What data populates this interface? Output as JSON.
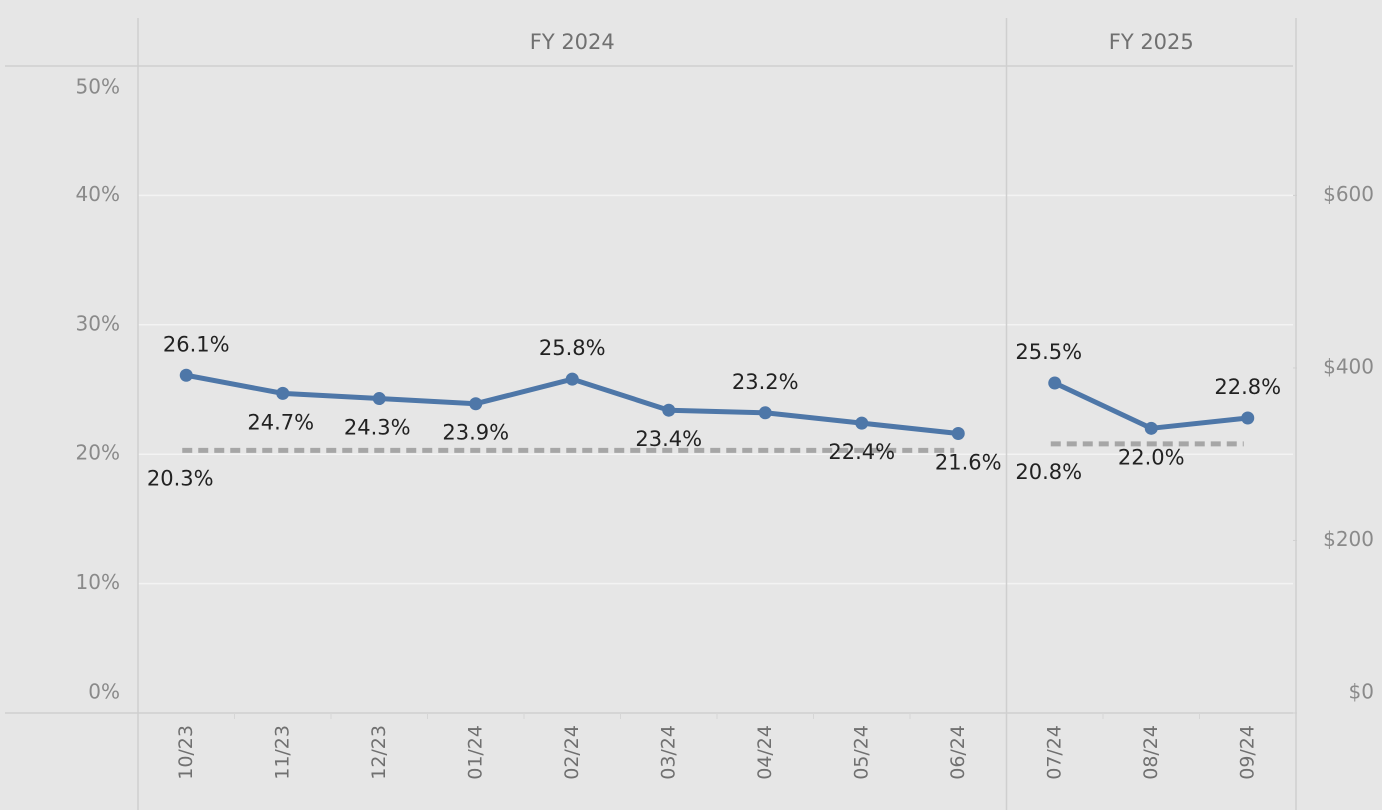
{
  "chart_data": {
    "type": "line",
    "color": "#4e77a8",
    "reference_color": "#a6a6a6",
    "grid": true,
    "ylim": [
      0,
      50
    ],
    "yticks": [
      {
        "value": 0,
        "label": "0%"
      },
      {
        "value": 10,
        "label": "10%"
      },
      {
        "value": 20,
        "label": "20%"
      },
      {
        "value": 30,
        "label": "30%"
      },
      {
        "value": 40,
        "label": "40%"
      },
      {
        "value": 50,
        "label": "50%"
      }
    ],
    "y2lim": [
      0,
      750
    ],
    "y2ticks": [
      {
        "value": 0,
        "label": "$0"
      },
      {
        "value": 200,
        "label": "$200"
      },
      {
        "value": 400,
        "label": "$400"
      },
      {
        "value": 600,
        "label": "$600"
      }
    ],
    "panes": [
      {
        "label": "FY 2024",
        "categories": [
          "10/23",
          "11/23",
          "12/23",
          "01/24",
          "02/24",
          "03/24",
          "04/24",
          "05/24",
          "06/24"
        ],
        "values": [
          26.1,
          24.7,
          24.3,
          23.9,
          25.8,
          23.4,
          23.2,
          22.4,
          21.6
        ],
        "value_labels": [
          "26.1%",
          "24.7%",
          "24.3%",
          "23.9%",
          "25.8%",
          "23.4%",
          "23.2%",
          "22.4%",
          "21.6%"
        ],
        "reference": 20.3,
        "reference_label": "20.3%"
      },
      {
        "label": "FY 2025",
        "categories": [
          "07/24",
          "08/24",
          "09/24"
        ],
        "values": [
          25.5,
          22.0,
          22.8
        ],
        "value_labels": [
          "25.5%",
          "22.0%",
          "22.8%"
        ],
        "reference": 20.8,
        "reference_label": "20.8%"
      }
    ]
  }
}
